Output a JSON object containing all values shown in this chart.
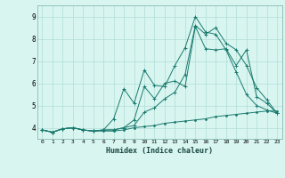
{
  "xlabel": "Humidex (Indice chaleur)",
  "bg_color": "#d8f5f0",
  "line_color": "#1a7a6e",
  "grid_color": "#b0ddd8",
  "xlim": [
    -0.5,
    23.5
  ],
  "ylim": [
    3.5,
    9.5
  ],
  "xticks": [
    0,
    1,
    2,
    3,
    4,
    5,
    6,
    7,
    8,
    9,
    10,
    11,
    12,
    13,
    14,
    15,
    16,
    17,
    18,
    19,
    20,
    21,
    22,
    23
  ],
  "yticks": [
    4,
    5,
    6,
    7,
    8,
    9
  ],
  "series": [
    {
      "x": [
        0,
        1,
        2,
        3,
        4,
        5,
        6,
        7,
        8,
        9,
        10,
        11,
        12,
        13,
        14,
        15,
        16,
        17,
        18,
        19,
        20,
        21,
        22,
        23
      ],
      "y": [
        3.9,
        3.8,
        3.95,
        4.0,
        3.9,
        3.85,
        3.85,
        3.85,
        3.9,
        4.0,
        4.05,
        4.1,
        4.2,
        4.25,
        4.3,
        4.35,
        4.4,
        4.5,
        4.55,
        4.6,
        4.65,
        4.7,
        4.75,
        4.75
      ],
      "marker": "."
    },
    {
      "x": [
        0,
        1,
        2,
        3,
        4,
        5,
        6,
        7,
        8,
        9,
        10,
        11,
        12,
        13,
        14,
        15,
        16,
        17,
        18,
        19,
        20,
        21,
        22,
        23
      ],
      "y": [
        3.9,
        3.8,
        3.95,
        4.0,
        3.9,
        3.85,
        3.9,
        3.9,
        4.0,
        4.35,
        5.85,
        5.3,
        6.0,
        6.1,
        5.85,
        8.55,
        7.55,
        7.5,
        7.55,
        6.8,
        7.5,
        5.4,
        5.1,
        4.65
      ],
      "marker": "+"
    },
    {
      "x": [
        0,
        1,
        2,
        3,
        4,
        5,
        6,
        7,
        8,
        9,
        10,
        11,
        12,
        13,
        14,
        15,
        16,
        17,
        18,
        19,
        20,
        21,
        22,
        23
      ],
      "y": [
        3.9,
        3.8,
        3.95,
        4.0,
        3.9,
        3.85,
        3.9,
        4.4,
        5.75,
        5.1,
        6.6,
        5.9,
        5.85,
        6.8,
        7.6,
        9.0,
        8.3,
        8.2,
        7.5,
        6.5,
        5.5,
        5.0,
        4.8,
        4.65
      ],
      "marker": "+"
    },
    {
      "x": [
        0,
        1,
        2,
        3,
        4,
        5,
        6,
        7,
        8,
        9,
        10,
        11,
        12,
        13,
        14,
        15,
        16,
        17,
        18,
        19,
        20,
        21,
        22,
        23
      ],
      "y": [
        3.9,
        3.8,
        3.95,
        4.0,
        3.9,
        3.85,
        3.9,
        3.9,
        4.0,
        4.1,
        4.7,
        4.9,
        5.3,
        5.6,
        6.4,
        8.6,
        8.2,
        8.5,
        7.8,
        7.5,
        6.8,
        5.8,
        5.25,
        4.65
      ],
      "marker": "+"
    }
  ]
}
